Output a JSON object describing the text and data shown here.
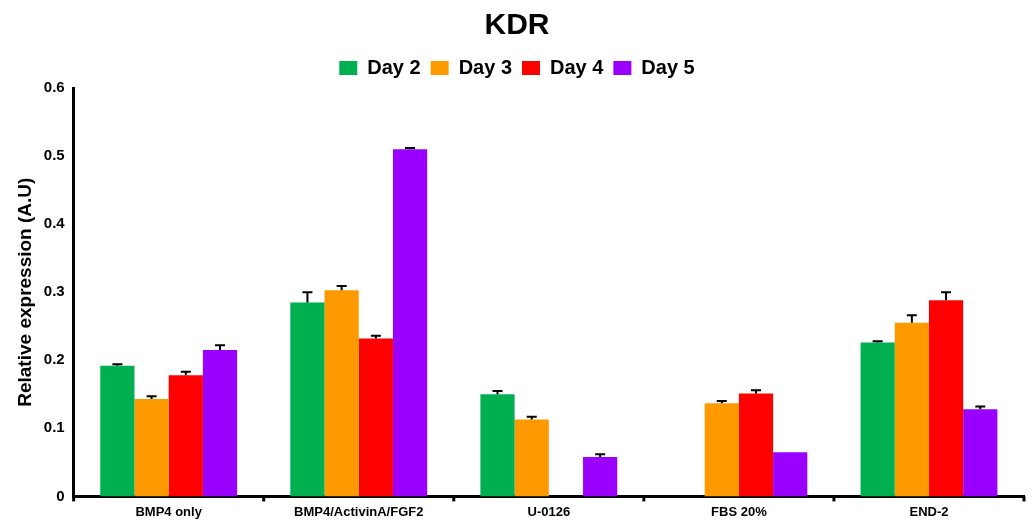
{
  "chart_data": {
    "type": "bar",
    "title": "KDR",
    "ylabel": "Relative expression (A.U)",
    "categories": [
      "BMP4 only",
      "BMP4/ActivinA/FGF2",
      "U-0126",
      "FBS 20%",
      "END-2"
    ],
    "series": [
      {
        "name": "Day 2",
        "color": "#00b050",
        "values": [
          0.192,
          0.285,
          0.15,
          null,
          0.226
        ],
        "errors": [
          [
            0.192,
            0.194
          ],
          [
            0.285,
            0.3
          ],
          [
            0.15,
            0.155
          ],
          null,
          [
            0.226,
            0.228
          ]
        ]
      },
      {
        "name": "Day 3",
        "color": "#ff9900",
        "values": [
          0.143,
          0.303,
          0.113,
          0.137,
          0.255
        ],
        "errors": [
          [
            0.143,
            0.147
          ],
          [
            0.303,
            0.309
          ],
          [
            0.113,
            0.117
          ],
          [
            0.137,
            0.14
          ],
          [
            0.255,
            0.266
          ]
        ]
      },
      {
        "name": "Day 4",
        "color": "#ff0000",
        "values": [
          0.178,
          0.232,
          null,
          0.151,
          0.288
        ],
        "errors": [
          [
            0.178,
            0.183
          ],
          [
            0.232,
            0.236
          ],
          null,
          [
            0.151,
            0.156
          ],
          [
            0.288,
            0.3
          ]
        ]
      },
      {
        "name": "Day 5",
        "color": "#9900ff",
        "values": [
          0.215,
          0.51,
          0.058,
          0.065,
          0.128
        ],
        "errors": [
          [
            0.215,
            0.222
          ],
          [
            0.51,
            0.512
          ],
          [
            0.058,
            0.062
          ],
          null,
          [
            0.128,
            0.132
          ]
        ]
      }
    ],
    "ylim": [
      0,
      0.6
    ],
    "yticks": [
      0,
      0.1,
      0.2,
      0.3,
      0.4,
      0.5,
      0.6
    ],
    "grid": false,
    "legend": "top"
  }
}
